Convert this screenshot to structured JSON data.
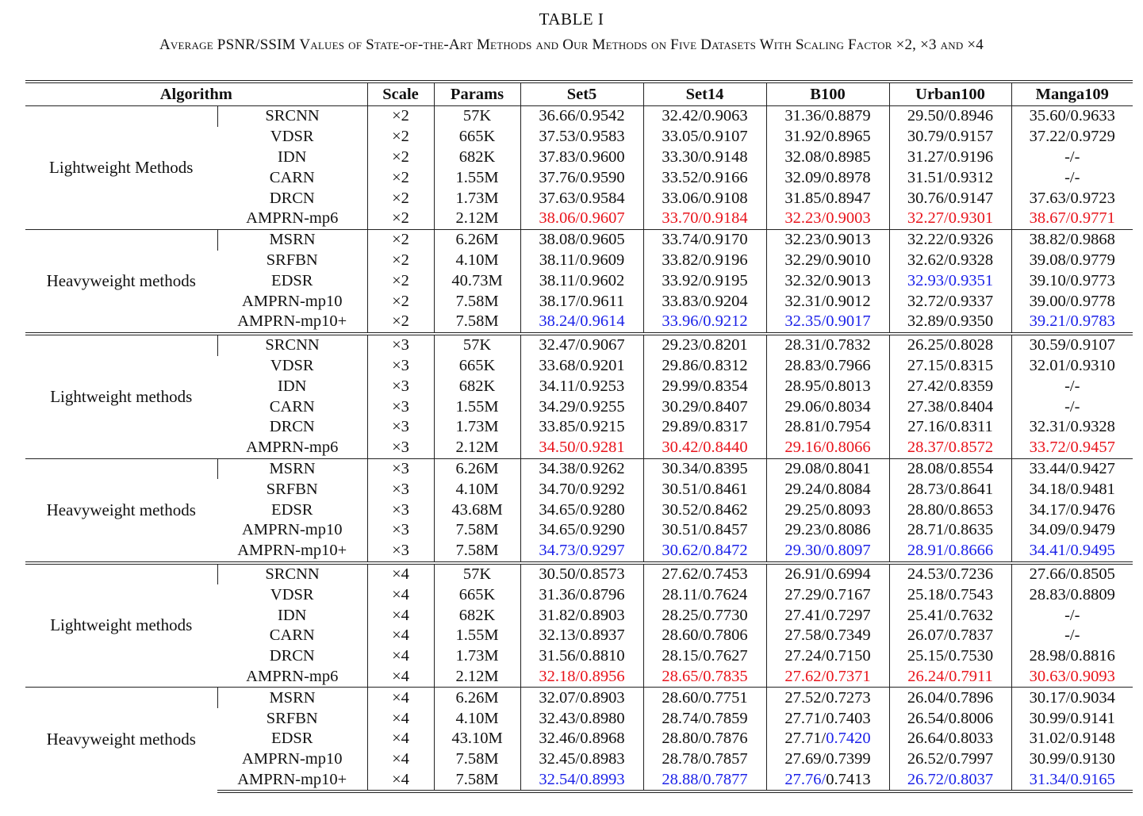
{
  "title": "TABLE I",
  "caption": "Average PSNR/SSIM Values of State-of-the-Art Methods and Our Methods on Five Datasets With Scaling Factor ×2, ×3 and ×4",
  "colors": {
    "best": "#e8141c",
    "second": "#1c22e8"
  },
  "headers": [
    "Algorithm",
    "Scale",
    "Params",
    "Set5",
    "Set14",
    "B100",
    "Urban100",
    "Manga109"
  ],
  "blocks": [
    {
      "groups": [
        {
          "category": "Lightweight Methods",
          "rows": [
            {
              "method": "SRCNN",
              "scale": "×2",
              "params": "57K",
              "cells": [
                {
                  "t": "36.66/0.9542"
                },
                {
                  "t": "32.42/0.9063"
                },
                {
                  "t": "31.36/0.8879"
                },
                {
                  "t": "29.50/0.8946"
                },
                {
                  "t": "35.60/0.9633"
                }
              ]
            },
            {
              "method": "VDSR",
              "scale": "×2",
              "params": "665K",
              "cells": [
                {
                  "t": "37.53/0.9583"
                },
                {
                  "t": "33.05/0.9107"
                },
                {
                  "t": "31.92/0.8965"
                },
                {
                  "t": "30.79/0.9157"
                },
                {
                  "t": "37.22/0.9729"
                }
              ]
            },
            {
              "method": "IDN",
              "scale": "×2",
              "params": "682K",
              "cells": [
                {
                  "t": "37.83/0.9600"
                },
                {
                  "t": "33.30/0.9148"
                },
                {
                  "t": "32.08/0.8985"
                },
                {
                  "t": "31.27/0.9196"
                },
                {
                  "t": "-/-"
                }
              ]
            },
            {
              "method": "CARN",
              "scale": "×2",
              "params": "1.55M",
              "cells": [
                {
                  "t": "37.76/0.9590"
                },
                {
                  "t": "33.52/0.9166"
                },
                {
                  "t": "32.09/0.8978"
                },
                {
                  "t": "31.51/0.9312"
                },
                {
                  "t": "-/-"
                }
              ]
            },
            {
              "method": "DRCN",
              "scale": "×2",
              "params": "1.73M",
              "cells": [
                {
                  "t": "37.63/0.9584"
                },
                {
                  "t": "33.06/0.9108"
                },
                {
                  "t": "31.85/0.8947"
                },
                {
                  "t": "30.76/0.9147"
                },
                {
                  "t": "37.63/0.9723"
                }
              ]
            },
            {
              "method": "AMPRN-mp6",
              "scale": "×2",
              "params": "2.12M",
              "cells": [
                {
                  "t": "38.06/0.9607",
                  "c": "red"
                },
                {
                  "t": "33.70/0.9184",
                  "c": "red"
                },
                {
                  "t": "32.23/0.9003",
                  "c": "red"
                },
                {
                  "t": "32.27/0.9301",
                  "c": "red"
                },
                {
                  "t": "38.67/0.9771",
                  "c": "red"
                }
              ]
            }
          ]
        },
        {
          "category": "Heavyweight methods",
          "rows": [
            {
              "method": "MSRN",
              "scale": "×2",
              "params": "6.26M",
              "cells": [
                {
                  "t": "38.08/0.9605"
                },
                {
                  "t": "33.74/0.9170"
                },
                {
                  "t": "32.23/0.9013"
                },
                {
                  "t": "32.22/0.9326"
                },
                {
                  "t": "38.82/0.9868"
                }
              ]
            },
            {
              "method": "SRFBN",
              "scale": "×2",
              "params": "4.10M",
              "cells": [
                {
                  "t": "38.11/0.9609"
                },
                {
                  "t": "33.82/0.9196"
                },
                {
                  "t": "32.29/0.9010"
                },
                {
                  "t": "32.62/0.9328"
                },
                {
                  "t": "39.08/0.9779"
                }
              ]
            },
            {
              "method": "EDSR",
              "scale": "×2",
              "params": "40.73M",
              "cells": [
                {
                  "t": "38.11/0.9602"
                },
                {
                  "t": "33.92/0.9195"
                },
                {
                  "t": "32.32/0.9013"
                },
                {
                  "t": "32.93/0.9351",
                  "c": "blue"
                },
                {
                  "t": "39.10/0.9773"
                }
              ]
            },
            {
              "method": "AMPRN-mp10",
              "scale": "×2",
              "params": "7.58M",
              "cells": [
                {
                  "t": "38.17/0.9611"
                },
                {
                  "t": "33.83/0.9204"
                },
                {
                  "t": "32.31/0.9012"
                },
                {
                  "t": "32.72/0.9337"
                },
                {
                  "t": "39.00/0.9778"
                }
              ]
            },
            {
              "method": "AMPRN-mp10+",
              "scale": "×2",
              "params": "7.58M",
              "cells": [
                {
                  "t": "38.24/0.9614",
                  "c": "blue"
                },
                {
                  "t": "33.96/0.9212",
                  "c": "blue"
                },
                {
                  "t": "32.35/0.9017",
                  "c": "blue"
                },
                {
                  "t": "32.89/0.9350"
                },
                {
                  "t": "39.21/0.9783",
                  "c": "blue"
                }
              ]
            }
          ]
        }
      ]
    },
    {
      "groups": [
        {
          "category": "Lightweight methods",
          "rows": [
            {
              "method": "SRCNN",
              "scale": "×3",
              "params": "57K",
              "cells": [
                {
                  "t": "32.47/0.9067"
                },
                {
                  "t": "29.23/0.8201"
                },
                {
                  "t": "28.31/0.7832"
                },
                {
                  "t": "26.25/0.8028"
                },
                {
                  "t": "30.59/0.9107"
                }
              ]
            },
            {
              "method": "VDSR",
              "scale": "×3",
              "params": "665K",
              "cells": [
                {
                  "t": "33.68/0.9201"
                },
                {
                  "t": "29.86/0.8312"
                },
                {
                  "t": "28.83/0.7966"
                },
                {
                  "t": "27.15/0.8315"
                },
                {
                  "t": "32.01/0.9310"
                }
              ]
            },
            {
              "method": "IDN",
              "scale": "×3",
              "params": "682K",
              "cells": [
                {
                  "t": "34.11/0.9253"
                },
                {
                  "t": "29.99/0.8354"
                },
                {
                  "t": "28.95/0.8013"
                },
                {
                  "t": "27.42/0.8359"
                },
                {
                  "t": "-/-"
                }
              ]
            },
            {
              "method": "CARN",
              "scale": "×3",
              "params": "1.55M",
              "cells": [
                {
                  "t": "34.29/0.9255"
                },
                {
                  "t": "30.29/0.8407"
                },
                {
                  "t": "29.06/0.8034"
                },
                {
                  "t": "27.38/0.8404"
                },
                {
                  "t": "-/-"
                }
              ]
            },
            {
              "method": "DRCN",
              "scale": "×3",
              "params": "1.73M",
              "cells": [
                {
                  "t": "33.85/0.9215"
                },
                {
                  "t": "29.89/0.8317"
                },
                {
                  "t": "28.81/0.7954"
                },
                {
                  "t": "27.16/0.8311"
                },
                {
                  "t": "32.31/0.9328"
                }
              ]
            },
            {
              "method": "AMPRN-mp6",
              "scale": "×3",
              "params": "2.12M",
              "cells": [
                {
                  "t": "34.50/0.9281",
                  "c": "red"
                },
                {
                  "t": "30.42/0.8440",
                  "c": "red"
                },
                {
                  "t": "29.16/0.8066",
                  "c": "red"
                },
                {
                  "t": "28.37/0.8572",
                  "c": "red"
                },
                {
                  "t": "33.72/0.9457",
                  "c": "red"
                }
              ]
            }
          ]
        },
        {
          "category": "Heavyweight methods",
          "rows": [
            {
              "method": "MSRN",
              "scale": "×3",
              "params": "6.26M",
              "cells": [
                {
                  "t": "34.38/0.9262"
                },
                {
                  "t": "30.34/0.8395"
                },
                {
                  "t": "29.08/0.8041"
                },
                {
                  "t": "28.08/0.8554"
                },
                {
                  "t": "33.44/0.9427"
                }
              ]
            },
            {
              "method": "SRFBN",
              "scale": "×3",
              "params": "4.10M",
              "cells": [
                {
                  "t": "34.70/0.9292"
                },
                {
                  "t": "30.51/0.8461"
                },
                {
                  "t": "29.24/0.8084"
                },
                {
                  "t": "28.73/0.8641"
                },
                {
                  "t": "34.18/0.9481"
                }
              ]
            },
            {
              "method": "EDSR",
              "scale": "×3",
              "params": "43.68M",
              "cells": [
                {
                  "t": "34.65/0.9280"
                },
                {
                  "t": "30.52/0.8462"
                },
                {
                  "t": "29.25/0.8093"
                },
                {
                  "t": "28.80/0.8653"
                },
                {
                  "t": "34.17/0.9476"
                }
              ]
            },
            {
              "method": "AMPRN-mp10",
              "scale": "×3",
              "params": "7.58M",
              "cells": [
                {
                  "t": "34.65/0.9290"
                },
                {
                  "t": "30.51/0.8457"
                },
                {
                  "t": "29.23/0.8086"
                },
                {
                  "t": "28.71/0.8635"
                },
                {
                  "t": "34.09/0.9479"
                }
              ]
            },
            {
              "method": "AMPRN-mp10+",
              "scale": "×3",
              "params": "7.58M",
              "cells": [
                {
                  "t": "34.73/0.9297",
                  "c": "blue"
                },
                {
                  "t": "30.62/0.8472",
                  "c": "blue"
                },
                {
                  "t": "29.30/0.8097",
                  "c": "blue"
                },
                {
                  "t": "28.91/0.8666",
                  "c": "blue"
                },
                {
                  "t": "34.41/0.9495",
                  "c": "blue"
                }
              ]
            }
          ]
        }
      ]
    },
    {
      "groups": [
        {
          "category": "Lightweight methods",
          "rows": [
            {
              "method": "SRCNN",
              "scale": "×4",
              "params": "57K",
              "cells": [
                {
                  "t": "30.50/0.8573"
                },
                {
                  "t": "27.62/0.7453"
                },
                {
                  "t": "26.91/0.6994"
                },
                {
                  "t": "24.53/0.7236"
                },
                {
                  "t": "27.66/0.8505"
                }
              ]
            },
            {
              "method": "VDSR",
              "scale": "×4",
              "params": "665K",
              "cells": [
                {
                  "t": "31.36/0.8796"
                },
                {
                  "t": "28.11/0.7624"
                },
                {
                  "t": "27.29/0.7167"
                },
                {
                  "t": "25.18/0.7543"
                },
                {
                  "t": "28.83/0.8809"
                }
              ]
            },
            {
              "method": "IDN",
              "scale": "×4",
              "params": "682K",
              "cells": [
                {
                  "t": "31.82/0.8903"
                },
                {
                  "t": "28.25/0.7730"
                },
                {
                  "t": "27.41/0.7297"
                },
                {
                  "t": "25.41/0.7632"
                },
                {
                  "t": "-/-"
                }
              ]
            },
            {
              "method": "CARN",
              "scale": "×4",
              "params": "1.55M",
              "cells": [
                {
                  "t": "32.13/0.8937"
                },
                {
                  "t": "28.60/0.7806"
                },
                {
                  "t": "27.58/0.7349"
                },
                {
                  "t": "26.07/0.7837"
                },
                {
                  "t": "-/-"
                }
              ]
            },
            {
              "method": "DRCN",
              "scale": "×4",
              "params": "1.73M",
              "cells": [
                {
                  "t": "31.56/0.8810"
                },
                {
                  "t": "28.15/0.7627"
                },
                {
                  "t": "27.24/0.7150"
                },
                {
                  "t": "25.15/0.7530"
                },
                {
                  "t": "28.98/0.8816"
                }
              ]
            },
            {
              "method": "AMPRN-mp6",
              "scale": "×4",
              "params": "2.12M",
              "cells": [
                {
                  "t": "32.18/0.8956",
                  "c": "red"
                },
                {
                  "t": "28.65/0.7835",
                  "c": "red"
                },
                {
                  "t": "27.62/0.7371",
                  "c": "red"
                },
                {
                  "t": "26.24/0.7911",
                  "c": "red"
                },
                {
                  "t": "30.63/0.9093",
                  "c": "red"
                }
              ]
            }
          ]
        },
        {
          "category": "Heavyweight methods",
          "rows": [
            {
              "method": "MSRN",
              "scale": "×4",
              "params": "6.26M",
              "cells": [
                {
                  "t": "32.07/0.8903"
                },
                {
                  "t": "28.60/0.7751"
                },
                {
                  "t": "27.52/0.7273"
                },
                {
                  "t": "26.04/0.7896"
                },
                {
                  "t": "30.17/0.9034"
                }
              ]
            },
            {
              "method": "SRFBN",
              "scale": "×4",
              "params": "4.10M",
              "cells": [
                {
                  "t": "32.43/0.8980"
                },
                {
                  "t": "28.74/0.7859"
                },
                {
                  "t": "27.71/0.7403"
                },
                {
                  "t": "26.54/0.8006"
                },
                {
                  "t": "30.99/0.9141"
                }
              ]
            },
            {
              "method": "EDSR",
              "scale": "×4",
              "params": "43.10M",
              "cells": [
                {
                  "t": "32.46/0.8968"
                },
                {
                  "t": "28.80/0.7876"
                },
                {
                  "t": "27.71/",
                  "t2": "0.7420",
                  "c2": "blue"
                },
                {
                  "t": "26.64/0.8033"
                },
                {
                  "t": "31.02/0.9148"
                }
              ]
            },
            {
              "method": "AMPRN-mp10",
              "scale": "×4",
              "params": "7.58M",
              "cells": [
                {
                  "t": "32.45/0.8983"
                },
                {
                  "t": "28.78/0.7857"
                },
                {
                  "t": "27.69/0.7399"
                },
                {
                  "t": "26.52/0.7997"
                },
                {
                  "t": "30.99/0.9130"
                }
              ]
            },
            {
              "method": "AMPRN-mp10+",
              "scale": "×4",
              "params": "7.58M",
              "cells": [
                {
                  "t": "32.54/0.8993",
                  "c": "blue"
                },
                {
                  "t": "28.88/0.7877",
                  "c": "blue"
                },
                {
                  "t": "27.76/",
                  "c": "blue",
                  "t2": "0.7413"
                },
                {
                  "t": "26.72/0.8037",
                  "c": "blue"
                },
                {
                  "t": "31.34/0.9165",
                  "c": "blue"
                }
              ]
            }
          ]
        }
      ]
    }
  ]
}
